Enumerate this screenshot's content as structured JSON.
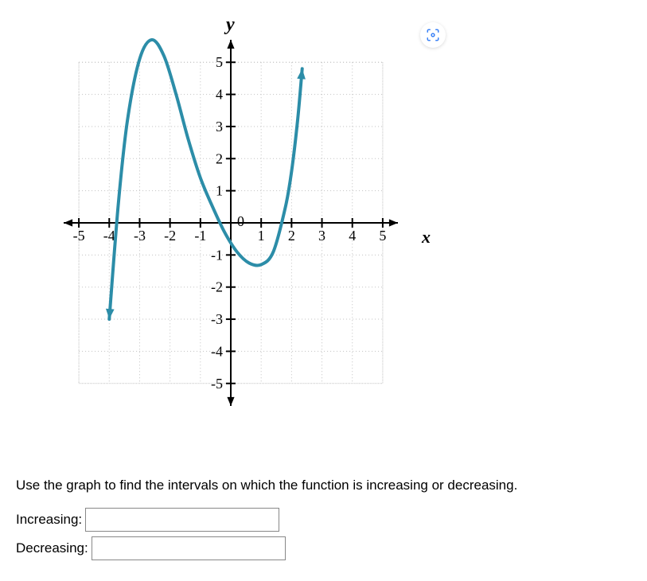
{
  "chart": {
    "type": "line",
    "x_axis_label": "x",
    "y_axis_label": "y",
    "background_color": "#ffffff",
    "grid_color": "#c0c0c0",
    "axis_color": "#000000",
    "curve_color": "#2c8da8",
    "curve_width": 4,
    "axis_width": 2,
    "xlim": [
      -5.5,
      5.5
    ],
    "ylim": [
      -5.7,
      5.7
    ],
    "xtick_labels": [
      "-5",
      "-4",
      "-3",
      "-2",
      "-1",
      "0",
      "1",
      "2",
      "3",
      "4",
      "5"
    ],
    "ytick_labels_pos": [
      "5",
      "4",
      "3",
      "2",
      "1"
    ],
    "ytick_labels_neg": [
      "-1",
      "-2",
      "-3",
      "-4",
      "-5"
    ],
    "tick_fontsize": 18,
    "label_fontsize": 24,
    "grid_box": {
      "xmin": -5,
      "xmax": 5,
      "ymin": -5,
      "ymax": 5
    },
    "curve_points": [
      [
        -4,
        -3
      ],
      [
        -3.7,
        0.6
      ],
      [
        -3.4,
        3.2
      ],
      [
        -3.0,
        5.1
      ],
      [
        -2.6,
        5.7
      ],
      [
        -2.2,
        5.2
      ],
      [
        -1.8,
        4.0
      ],
      [
        -1.4,
        2.6
      ],
      [
        -1.0,
        1.4
      ],
      [
        -0.6,
        0.5
      ],
      [
        -0.2,
        -0.3
      ],
      [
        0.2,
        -0.9
      ],
      [
        0.6,
        -1.25
      ],
      [
        1.0,
        -1.3
      ],
      [
        1.4,
        -0.9
      ],
      [
        1.8,
        0.5
      ],
      [
        2.0,
        1.6
      ],
      [
        2.2,
        3.2
      ],
      [
        2.35,
        4.8
      ]
    ],
    "start_arrow": true,
    "end_arrow": true
  },
  "question_text": "Use the graph to find the intervals on which the function is increasing or decreasing.",
  "inputs": {
    "increasing_label": "Increasing:",
    "increasing_value": "",
    "decreasing_label": "Decreasing:",
    "decreasing_value": ""
  },
  "capture_icon_color": "#3b82f6"
}
